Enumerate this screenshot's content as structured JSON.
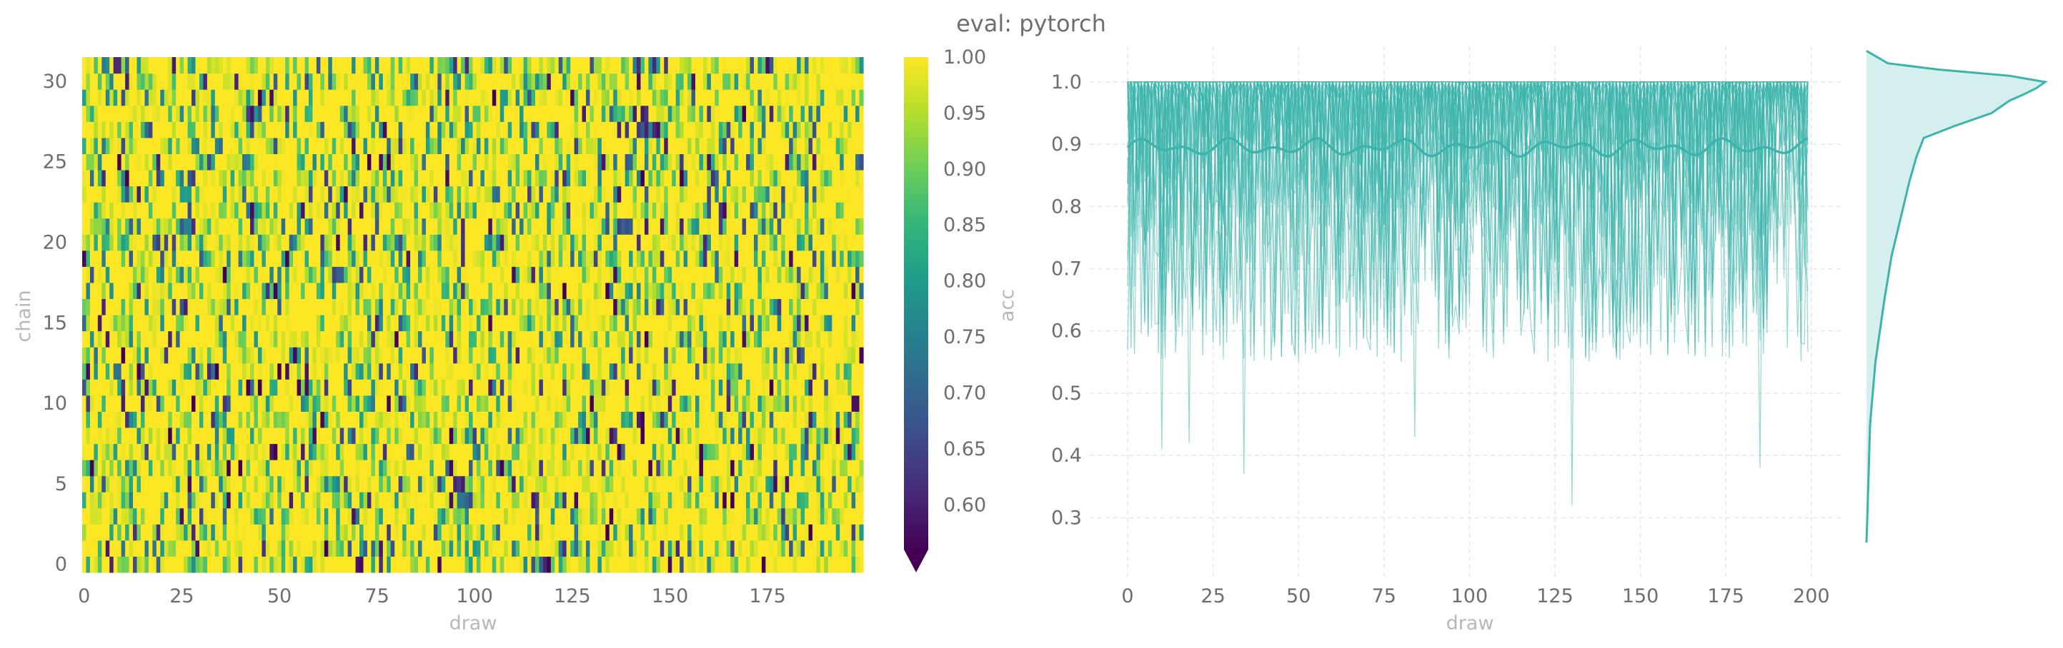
{
  "title": "eval: pytorch",
  "colors": {
    "trace": "#3cb4ac",
    "grid": "#e6e6e6",
    "tick_text": "#6e6e6e",
    "label_text": "#b8b8b8",
    "viridis": [
      "#440154",
      "#482878",
      "#3e4a89",
      "#31688e",
      "#26828e",
      "#1f9e89",
      "#35b779",
      "#6ece58",
      "#b5de2b",
      "#fde725"
    ]
  },
  "chart_data": [
    {
      "type": "heatmap",
      "metric": "acc",
      "xlabel": "draw",
      "ylabel": "chain",
      "n_draws": 200,
      "n_chains": 32,
      "x_ticks": [
        0,
        25,
        50,
        75,
        100,
        125,
        150,
        175
      ],
      "y_ticks": [
        0,
        5,
        10,
        15,
        20,
        25,
        30
      ],
      "value_distribution": {
        "mode": 1.0,
        "typical_range": [
          0.6,
          1.0
        ],
        "min": 0.32
      },
      "colorbar": {
        "label": "acc",
        "vmin": 0.56,
        "vmax": 1.0,
        "ticks": [
          "0.60",
          "0.65",
          "0.70",
          "0.75",
          "0.80",
          "0.85",
          "0.90",
          "0.95",
          "1.00"
        ],
        "extend": "min",
        "colormap": "viridis"
      }
    },
    {
      "type": "line",
      "xlabel": "draw",
      "ylabel": "",
      "xlim": [
        0,
        199
      ],
      "ylim": [
        0.25,
        1.04
      ],
      "x_ticks": [
        0,
        25,
        50,
        75,
        100,
        125,
        150,
        175,
        200
      ],
      "y_ticks": [
        "0.3",
        "0.4",
        "0.5",
        "0.6",
        "0.7",
        "0.8",
        "0.9",
        "1.0"
      ],
      "n_chains": 32,
      "mean_level": 0.895,
      "mean_range": [
        0.88,
        0.91
      ],
      "max": 1.0,
      "min": 0.32,
      "deep_dips": [
        {
          "x": 10,
          "y": 0.41
        },
        {
          "x": 18,
          "y": 0.42
        },
        {
          "x": 34,
          "y": 0.37
        },
        {
          "x": 84,
          "y": 0.43
        },
        {
          "x": 130,
          "y": 0.32
        },
        {
          "x": 185,
          "y": 0.38
        }
      ],
      "grid": true
    },
    {
      "type": "area",
      "orientation": "horizontal",
      "description": "marginal density of acc",
      "y": [
        0.26,
        0.35,
        0.45,
        0.55,
        0.65,
        0.72,
        0.78,
        0.84,
        0.88,
        0.91,
        0.93,
        0.95,
        0.97,
        0.98,
        0.99,
        1.0,
        1.01,
        1.02,
        1.03,
        1.05
      ],
      "density": [
        0.0,
        0.01,
        0.02,
        0.05,
        0.1,
        0.14,
        0.19,
        0.24,
        0.28,
        0.32,
        0.5,
        0.7,
        0.8,
        0.88,
        0.95,
        1.0,
        0.8,
        0.4,
        0.12,
        0.0
      ]
    }
  ]
}
